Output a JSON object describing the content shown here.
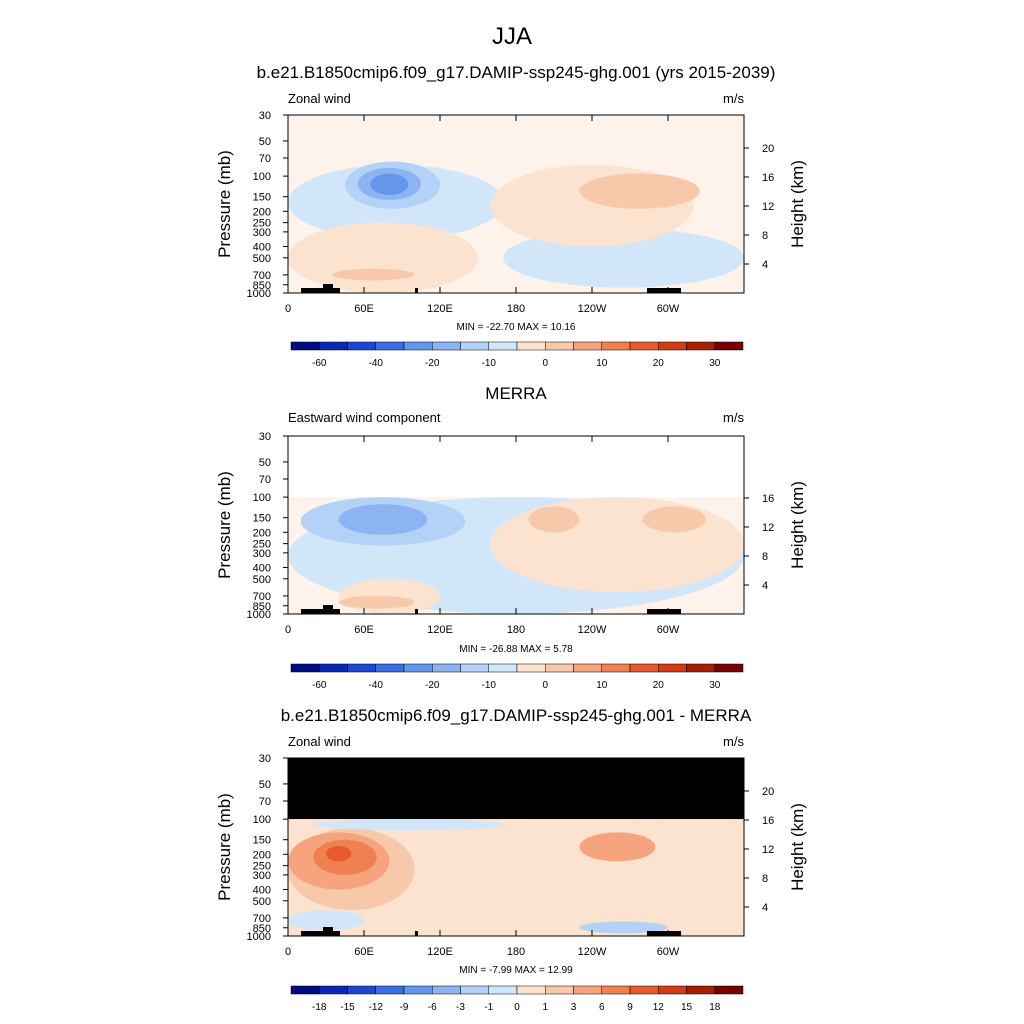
{
  "figure": {
    "title": "JJA"
  },
  "chart_data": [
    {
      "type": "heatmap",
      "title": "b.e21.B1850cmip6.f09_g17.DAMIP-ssp245-ghg.001 (yrs 2015-2039)",
      "left_label": "Zonal wind",
      "units": "m/s",
      "ylabel": "Pressure (mb)",
      "ylabel_right": "Height (km)",
      "x_ticks": [
        "0",
        "60E",
        "120E",
        "180",
        "120W",
        "60W"
      ],
      "y_ticks": [
        "30",
        "50",
        "70",
        "100",
        "150",
        "200",
        "250",
        "300",
        "400",
        "500",
        "700",
        "850",
        "1000"
      ],
      "height_ticks": [
        "20",
        "16",
        "12",
        "8",
        "4"
      ],
      "stats": "MIN = -22.70  MAX =  10.16",
      "colorbar_labels": [
        "-60",
        "-40",
        "-20",
        "-10",
        "0",
        "10",
        "20",
        "30"
      ],
      "missing_above_hPa": null,
      "regions": [
        {
          "level": -1,
          "lon": [
            0,
            170
          ],
          "p": [
            80,
            350
          ]
        },
        {
          "level": -1,
          "lon": [
            170,
            360
          ],
          "p": [
            280,
            900
          ]
        },
        {
          "level": 1,
          "lon": [
            160,
            320
          ],
          "p": [
            80,
            400
          ]
        },
        {
          "level": 1,
          "lon": [
            0,
            150
          ],
          "p": [
            250,
            1000
          ]
        },
        {
          "level": -2,
          "lon": [
            45,
            120
          ],
          "p": [
            75,
            190
          ]
        },
        {
          "level": -3,
          "lon": [
            55,
            105
          ],
          "p": [
            85,
            160
          ]
        },
        {
          "level": -4,
          "lon": [
            65,
            95
          ],
          "p": [
            95,
            145
          ]
        },
        {
          "level": 2,
          "lon": [
            230,
            325
          ],
          "p": [
            95,
            190
          ]
        },
        {
          "level": 2,
          "lon": [
            35,
            100
          ],
          "p": [
            620,
            780
          ]
        }
      ]
    },
    {
      "type": "heatmap",
      "title": "MERRA",
      "left_label": "Eastward wind component",
      "units": "m/s",
      "ylabel": "Pressure (mb)",
      "ylabel_right": "Height (km)",
      "x_ticks": [
        "0",
        "60E",
        "120E",
        "180",
        "120W",
        "60W"
      ],
      "y_ticks": [
        "30",
        "50",
        "70",
        "100",
        "150",
        "200",
        "250",
        "300",
        "400",
        "500",
        "700",
        "850",
        "1000"
      ],
      "height_ticks": [
        "16",
        "12",
        "8",
        "4"
      ],
      "stats": "MIN = -26.88  MAX =   5.78",
      "colorbar_labels": [
        "-60",
        "-40",
        "-20",
        "-10",
        "0",
        "10",
        "20",
        "30"
      ],
      "missing_above_hPa": 100,
      "regions": [
        {
          "level": -1,
          "lon": [
            0,
            360
          ],
          "p": [
            100,
            1000
          ]
        },
        {
          "level": 1,
          "lon": [
            160,
            360
          ],
          "p": [
            100,
            650
          ]
        },
        {
          "level": 1,
          "lon": [
            40,
            120
          ],
          "p": [
            500,
            1000
          ]
        },
        {
          "level": -2,
          "lon": [
            10,
            140
          ],
          "p": [
            100,
            260
          ]
        },
        {
          "level": -3,
          "lon": [
            40,
            110
          ],
          "p": [
            115,
            210
          ]
        },
        {
          "level": 2,
          "lon": [
            190,
            230
          ],
          "p": [
            120,
            200
          ]
        },
        {
          "level": 2,
          "lon": [
            280,
            330
          ],
          "p": [
            120,
            200
          ]
        },
        {
          "level": 2,
          "lon": [
            40,
            100
          ],
          "p": [
            700,
            900
          ]
        }
      ]
    },
    {
      "type": "heatmap",
      "title": "b.e21.B1850cmip6.f09_g17.DAMIP-ssp245-ghg.001 - MERRA",
      "left_label": "Zonal wind",
      "units": "m/s",
      "ylabel": "Pressure (mb)",
      "ylabel_right": "Height (km)",
      "x_ticks": [
        "0",
        "60E",
        "120E",
        "180",
        "120W",
        "60W"
      ],
      "y_ticks": [
        "30",
        "50",
        "70",
        "100",
        "150",
        "200",
        "250",
        "300",
        "400",
        "500",
        "700",
        "850",
        "1000"
      ],
      "height_ticks": [
        "20",
        "16",
        "12",
        "8",
        "4"
      ],
      "stats": "MIN =  -7.99  MAX =  12.99",
      "colorbar_labels": [
        "-18",
        "-15",
        "-12",
        "-9",
        "-6",
        "-3",
        "-1",
        "0",
        "1",
        "3",
        "6",
        "9",
        "12",
        "15",
        "18"
      ],
      "missing_above_hPa": 100,
      "regions": [
        {
          "level": 1,
          "lon": [
            0,
            360
          ],
          "p": [
            100,
            1000
          ]
        },
        {
          "level": -1,
          "lon": [
            20,
            170
          ],
          "p": [
            100,
            125
          ]
        },
        {
          "level": 2,
          "lon": [
            0,
            100
          ],
          "p": [
            120,
            600
          ]
        },
        {
          "level": 3,
          "lon": [
            0,
            80
          ],
          "p": [
            130,
            400
          ]
        },
        {
          "level": 4,
          "lon": [
            20,
            70
          ],
          "p": [
            150,
            300
          ]
        },
        {
          "level": 5,
          "lon": [
            30,
            50
          ],
          "p": [
            170,
            230
          ]
        },
        {
          "level": 3,
          "lon": [
            230,
            290
          ],
          "p": [
            130,
            230
          ]
        },
        {
          "level": -1,
          "lon": [
            0,
            60
          ],
          "p": [
            600,
            900
          ]
        },
        {
          "level": -2,
          "lon": [
            230,
            300
          ],
          "p": [
            750,
            950
          ]
        }
      ]
    }
  ]
}
